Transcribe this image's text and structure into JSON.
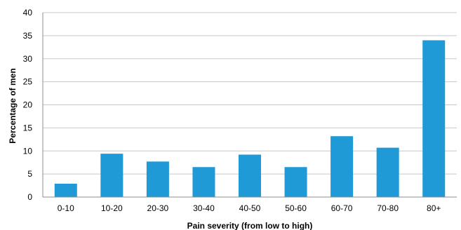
{
  "chart_data": {
    "type": "bar",
    "title": "",
    "xlabel": "Pain severity  (from low to high)",
    "ylabel": "Percentage of men",
    "categories": [
      "0-10",
      "10-20",
      "20-30",
      "30-40",
      "40-50",
      "50-60",
      "60-70",
      "70-80",
      "80+"
    ],
    "values": [
      2.9,
      9.4,
      7.7,
      6.5,
      9.2,
      6.5,
      13.2,
      10.7,
      34.0
    ],
    "ylim": [
      0,
      40
    ],
    "yticks": [
      "0",
      "5",
      "10",
      "15",
      "20",
      "25",
      "30",
      "35",
      "40"
    ],
    "grid": "horizontal",
    "legend": "none",
    "bar_color": "#1f9ad6",
    "grid_color": "#c8c8c8",
    "axis_color": "#8c8c8c"
  }
}
